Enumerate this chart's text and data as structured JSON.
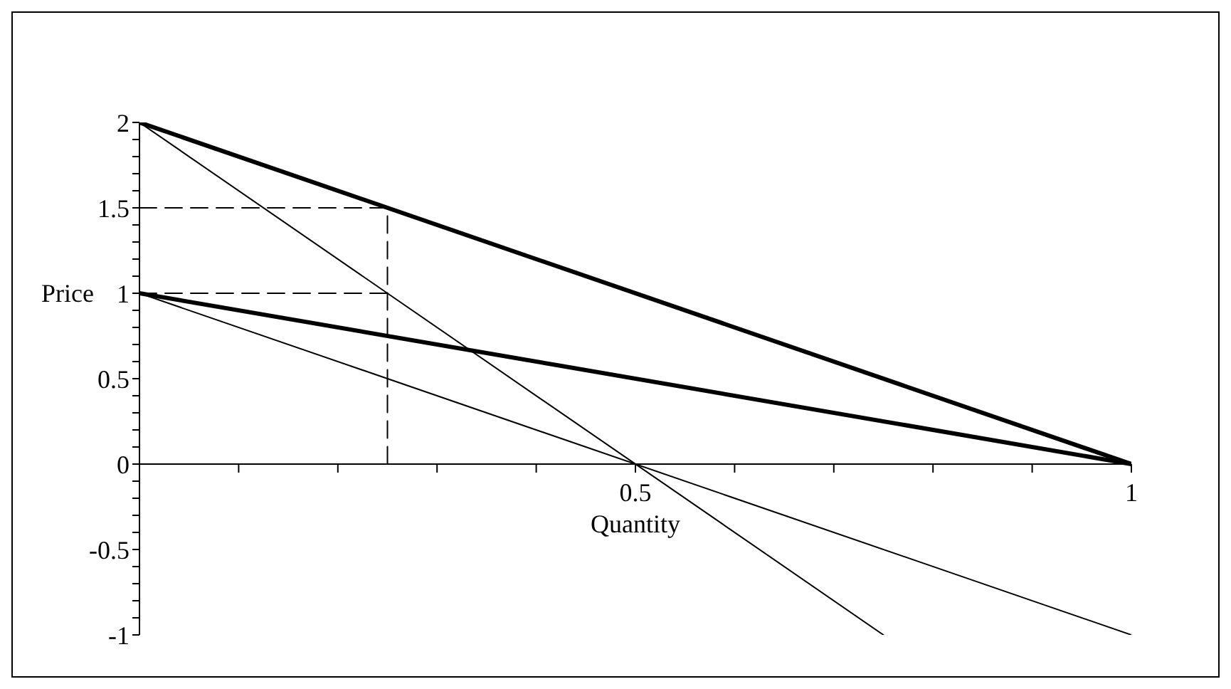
{
  "chart_data": {
    "type": "line",
    "xlabel": "Quantity",
    "ylabel": "Price",
    "xlim": [
      0,
      1
    ],
    "ylim": [
      -1,
      2
    ],
    "xticks": [
      {
        "value": 0,
        "label": null
      },
      {
        "value": 0.1,
        "label": null
      },
      {
        "value": 0.2,
        "label": null
      },
      {
        "value": 0.3,
        "label": null
      },
      {
        "value": 0.4,
        "label": null
      },
      0.5,
      {
        "value": 0.6,
        "label": null
      },
      {
        "value": 0.7,
        "label": null
      },
      {
        "value": 0.8,
        "label": null
      },
      {
        "value": 0.9,
        "label": null
      },
      1
    ],
    "yticks": [
      -1,
      {
        "value": -0.9,
        "label": null
      },
      {
        "value": -0.8,
        "label": null
      },
      {
        "value": -0.7,
        "label": null
      },
      {
        "value": -0.6,
        "label": null
      },
      -0.5,
      {
        "value": -0.4,
        "label": null
      },
      {
        "value": -0.3,
        "label": null
      },
      {
        "value": -0.2,
        "label": null
      },
      {
        "value": -0.1,
        "label": null
      },
      0,
      {
        "value": 0.1,
        "label": null
      },
      {
        "value": 0.2,
        "label": null
      },
      {
        "value": 0.3,
        "label": null
      },
      {
        "value": 0.4,
        "label": null
      },
      0.5,
      {
        "value": 0.6,
        "label": null
      },
      {
        "value": 0.7,
        "label": null
      },
      {
        "value": 0.8,
        "label": null
      },
      {
        "value": 0.9,
        "label": null
      },
      1,
      {
        "value": 1.1,
        "label": null
      },
      {
        "value": 1.2,
        "label": null
      },
      {
        "value": 1.3,
        "label": null
      },
      {
        "value": 1.4,
        "label": null
      },
      1.5,
      {
        "value": 1.6,
        "label": null
      },
      {
        "value": 1.7,
        "label": null
      },
      {
        "value": 1.8,
        "label": null
      },
      {
        "value": 1.9,
        "label": null
      },
      2
    ],
    "grid": false,
    "marker": "none",
    "line_style": "solid",
    "series": [
      {
        "color": "#000000",
        "x": [
          0,
          1
        ],
        "values": [
          2,
          0
        ]
      },
      {
        "color": "#000000",
        "x": [
          0,
          1
        ],
        "values": [
          1,
          0
        ]
      },
      {
        "color": "#000000",
        "x": [
          0,
          0.75
        ],
        "values": [
          2,
          -1
        ]
      },
      {
        "color": "#000000",
        "x": [
          0,
          1
        ],
        "values": [
          1,
          -1
        ]
      },
      {
        "color": "#000000",
        "x": [
          0,
          0.25,
          0.25
        ],
        "values": [
          1.5,
          1.5,
          0
        ],
        "line_style": "dashed"
      },
      {
        "color": "#000000",
        "x": [
          0,
          0.25
        ],
        "values": [
          1,
          1
        ],
        "line_style": "dashed"
      }
    ]
  }
}
